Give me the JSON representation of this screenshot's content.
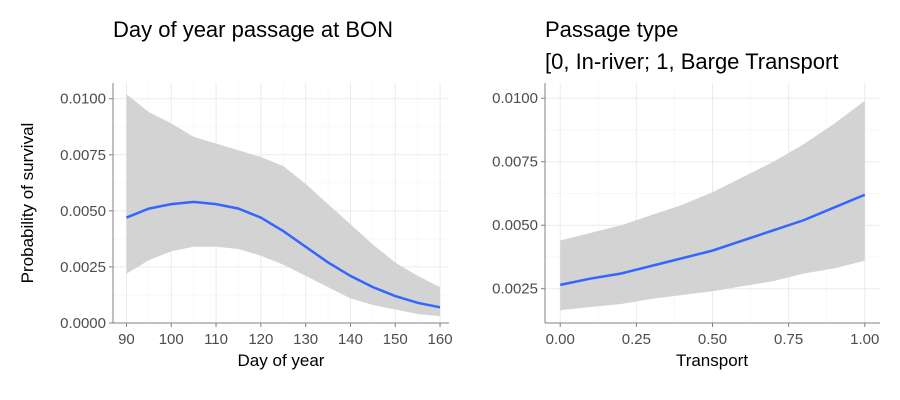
{
  "chart_data": [
    {
      "type": "line",
      "title": "Day of year passage at BON",
      "xlabel": "Day of year",
      "ylabel": "Probability of survival",
      "xlim": [
        87,
        162
      ],
      "ylim": [
        0,
        0.0107
      ],
      "x_ticks": [
        90,
        100,
        110,
        120,
        130,
        140,
        150,
        160
      ],
      "x_tick_labels": [
        "90",
        "100",
        "110",
        "120",
        "130",
        "140",
        "150",
        "160"
      ],
      "y_ticks": [
        0,
        0.0025,
        0.005,
        0.0075,
        0.01
      ],
      "y_tick_labels": [
        "0.0000",
        "0.0025",
        "0.0050",
        "0.0075",
        "0.0100"
      ],
      "grid": true,
      "line_color": "#3366FF",
      "band_color": "#D3D3D3",
      "series": [
        {
          "x": [
            90,
            95,
            100,
            105,
            110,
            115,
            120,
            125,
            130,
            135,
            140,
            145,
            150,
            155,
            160
          ],
          "values": [
            0.0047,
            0.0051,
            0.0053,
            0.0054,
            0.0053,
            0.0051,
            0.0047,
            0.0041,
            0.0034,
            0.0027,
            0.0021,
            0.0016,
            0.0012,
            0.0009,
            0.0007
          ],
          "lower": [
            0.0022,
            0.0028,
            0.0032,
            0.0034,
            0.0034,
            0.0033,
            0.003,
            0.0026,
            0.0021,
            0.0016,
            0.0011,
            0.0008,
            0.0006,
            0.0004,
            0.0003
          ],
          "upper": [
            0.0102,
            0.0094,
            0.0089,
            0.0083,
            0.008,
            0.0077,
            0.0074,
            0.007,
            0.0062,
            0.0053,
            0.0044,
            0.0035,
            0.0027,
            0.0021,
            0.0016
          ]
        }
      ]
    },
    {
      "type": "line",
      "title": "Passage type\n[0, In-river; 1, Barge Transport",
      "xlabel": "Transport",
      "ylabel": "",
      "xlim": [
        -0.05,
        1.05
      ],
      "ylim": [
        0.00115,
        0.0106
      ],
      "x_ticks": [
        0,
        0.25,
        0.5,
        0.75,
        1
      ],
      "x_tick_labels": [
        "0.00",
        "0.25",
        "0.50",
        "0.75",
        "1.00"
      ],
      "y_ticks": [
        0.0025,
        0.005,
        0.0075,
        0.01
      ],
      "y_tick_labels": [
        "0.0025",
        "0.0050",
        "0.0075",
        "0.0100"
      ],
      "grid": true,
      "line_color": "#3366FF",
      "band_color": "#D3D3D3",
      "series": [
        {
          "x": [
            0,
            0.1,
            0.2,
            0.3,
            0.4,
            0.5,
            0.6,
            0.7,
            0.8,
            0.9,
            1.0
          ],
          "values": [
            0.00265,
            0.0029,
            0.0031,
            0.0034,
            0.0037,
            0.004,
            0.0044,
            0.0048,
            0.0052,
            0.0057,
            0.0062
          ],
          "lower": [
            0.00165,
            0.00178,
            0.0019,
            0.0021,
            0.00225,
            0.0024,
            0.0026,
            0.0028,
            0.0031,
            0.0033,
            0.0036
          ],
          "upper": [
            0.0044,
            0.0047,
            0.005,
            0.0054,
            0.0058,
            0.0063,
            0.0069,
            0.0075,
            0.0082,
            0.009,
            0.0099
          ]
        }
      ]
    }
  ]
}
